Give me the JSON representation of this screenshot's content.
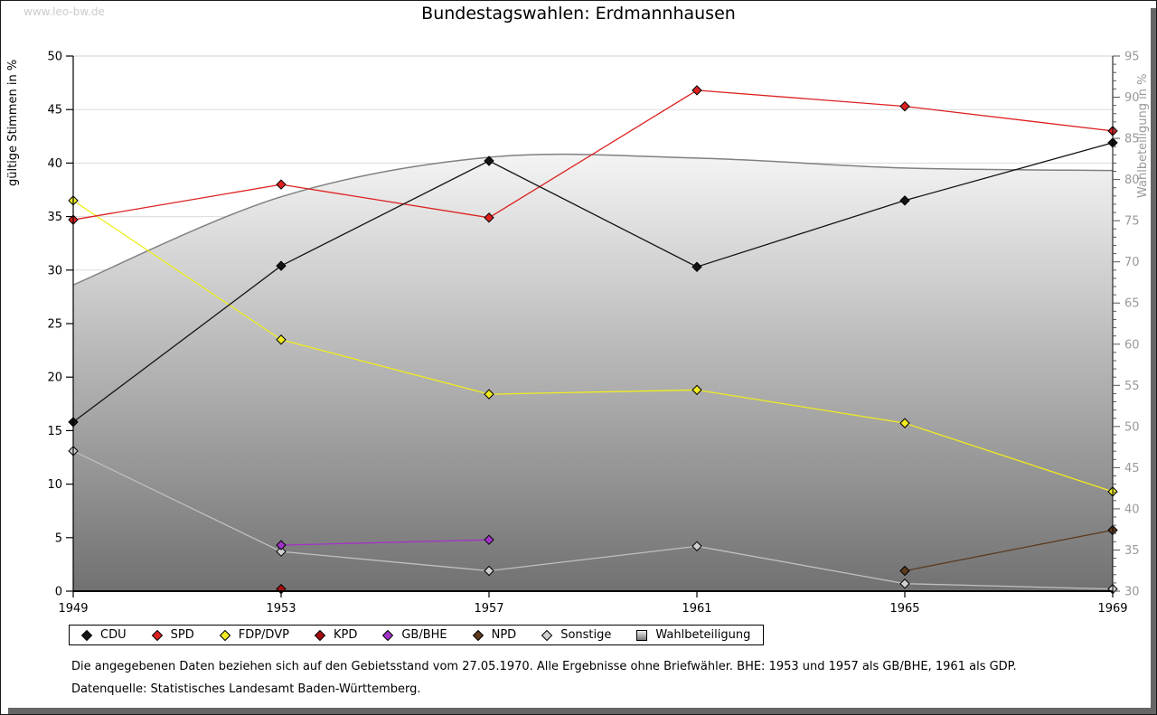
{
  "watermark": "www.leo-bw.de",
  "title": "Bundestagswahlen: Erdmannhausen",
  "footnotes": [
    "Die angegebenen Daten beziehen sich auf den Gebietsstand vom 27.05.1970. Alle Ergebnisse ohne Briefwähler. BHE: 1953 und 1957 als GB/BHE, 1961 als GDP.",
    "Datenquelle: Statistisches Landesamt Baden-Württemberg."
  ],
  "chart_data": {
    "type": "line",
    "title": "Bundestagswahlen: Erdmannhausen",
    "xlabel": "",
    "ylabel_left": "gültige Stimmen in %",
    "ylabel_right": "Wahlbeteiligung in %",
    "xlim": [
      1949,
      1969
    ],
    "ylim_left": [
      0,
      50
    ],
    "ylim_right": [
      30,
      95
    ],
    "xticks": [
      1949,
      1953,
      1957,
      1961,
      1965,
      1969
    ],
    "yticks_left": [
      0,
      5,
      10,
      15,
      20,
      25,
      30,
      35,
      40,
      45,
      50
    ],
    "yticks_right": [
      30,
      35,
      40,
      45,
      50,
      55,
      60,
      65,
      70,
      75,
      80,
      85,
      90,
      95
    ],
    "grid": true,
    "legend_position": "bottom",
    "series": [
      {
        "name": "CDU",
        "color": "#141414",
        "marker": "diamond",
        "axis": "left",
        "points": [
          [
            1949,
            15.8
          ],
          [
            1953,
            30.4
          ],
          [
            1957,
            40.2
          ],
          [
            1961,
            30.3
          ],
          [
            1965,
            36.5
          ],
          [
            1969,
            41.9
          ]
        ]
      },
      {
        "name": "SPD",
        "color": "#dd2020",
        "marker": "diamond",
        "axis": "left",
        "points": [
          [
            1949,
            34.7
          ],
          [
            1953,
            38.0
          ],
          [
            1957,
            34.9
          ],
          [
            1961,
            46.8
          ],
          [
            1965,
            45.3
          ],
          [
            1969,
            43.0
          ]
        ]
      },
      {
        "name": "FDP/DVP",
        "color": "#f0ec20",
        "marker": "diamond",
        "axis": "left",
        "points": [
          [
            1949,
            36.5
          ],
          [
            1953,
            23.5
          ],
          [
            1957,
            18.4
          ],
          [
            1961,
            18.8
          ],
          [
            1965,
            15.7
          ],
          [
            1969,
            9.3
          ]
        ]
      },
      {
        "name": "KPD",
        "color": "#a50d0d",
        "marker": "diamond",
        "axis": "left",
        "points": [
          [
            1953,
            0.2
          ]
        ]
      },
      {
        "name": "GB/BHE",
        "color": "#a233c9",
        "marker": "diamond",
        "axis": "left",
        "points": [
          [
            1953,
            4.3
          ],
          [
            1957,
            4.8
          ]
        ]
      },
      {
        "name": "NPD",
        "color": "#5e3a1d",
        "marker": "diamond",
        "axis": "left",
        "points": [
          [
            1965,
            1.9
          ],
          [
            1969,
            5.7
          ]
        ]
      },
      {
        "name": "Sonstige",
        "color": "#d0d0d0",
        "line_color": "#bfbfbf",
        "marker": "diamond",
        "axis": "left",
        "points": [
          [
            1949,
            13.1
          ],
          [
            1953,
            3.7
          ],
          [
            1957,
            1.9
          ],
          [
            1961,
            4.2
          ],
          [
            1965,
            0.7
          ],
          [
            1969,
            0.2
          ]
        ]
      }
    ],
    "participation": {
      "name": "Wahlbeteiligung",
      "axis": "right",
      "marker": "square",
      "edge_color": "#808080",
      "fill_top": "#f4f4f4",
      "fill_bottom": "#717171",
      "points": [
        [
          1949,
          67.2
        ],
        [
          1953,
          77.9
        ],
        [
          1957,
          82.7
        ],
        [
          1961,
          82.6
        ],
        [
          1965,
          81.4
        ],
        [
          1969,
          81.1
        ]
      ]
    },
    "colors": {
      "grid": "#dcdcdc",
      "axis": "#000000",
      "right_axis_text": "#999999",
      "left_axis_text": "#000000"
    },
    "draw_order": [
      "Sonstige",
      "GB/BHE",
      "NPD",
      "KPD",
      "FDP/DVP",
      "SPD",
      "CDU"
    ]
  }
}
